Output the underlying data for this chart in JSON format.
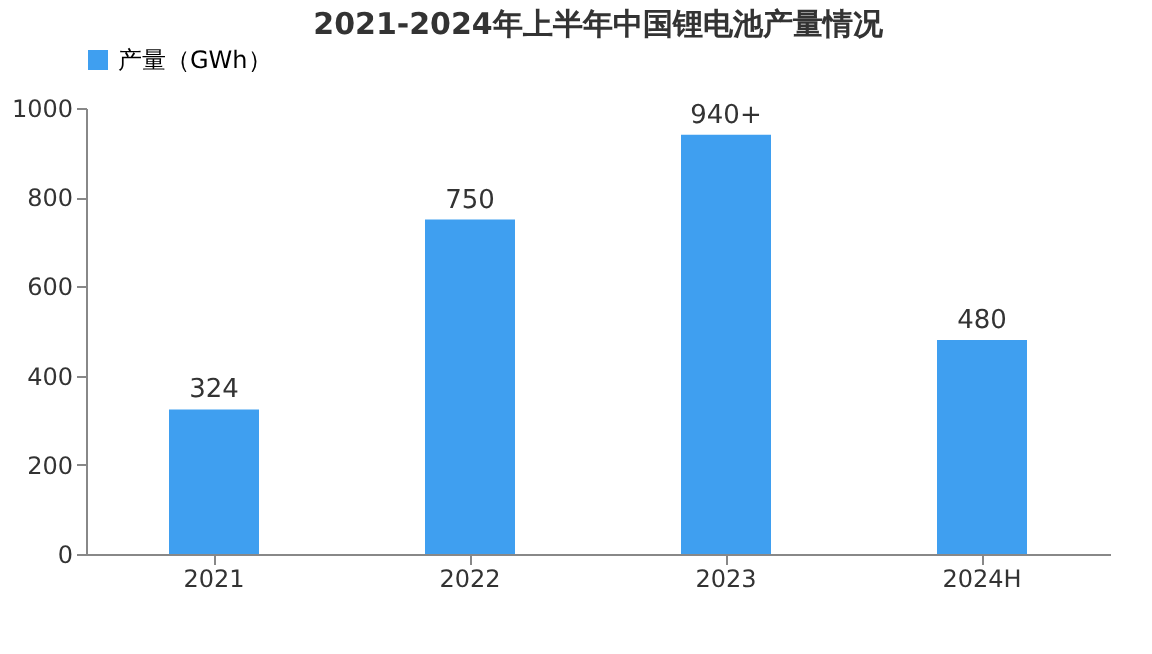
{
  "chart_data": {
    "type": "bar",
    "title": "2021-2024年上半年中国锂电池产量情况",
    "categories": [
      "2021",
      "2022",
      "2023",
      "2024H"
    ],
    "series": [
      {
        "name": "产量（GWh）",
        "color": "#3f9ff0",
        "values": [
          324,
          750,
          940,
          480
        ],
        "value_labels": [
          "324",
          "750",
          "940+",
          "480"
        ]
      }
    ],
    "ylim": [
      0,
      1000
    ],
    "yticks": [
      0,
      200,
      400,
      600,
      800,
      1000
    ],
    "grid": false,
    "legend": "top"
  }
}
